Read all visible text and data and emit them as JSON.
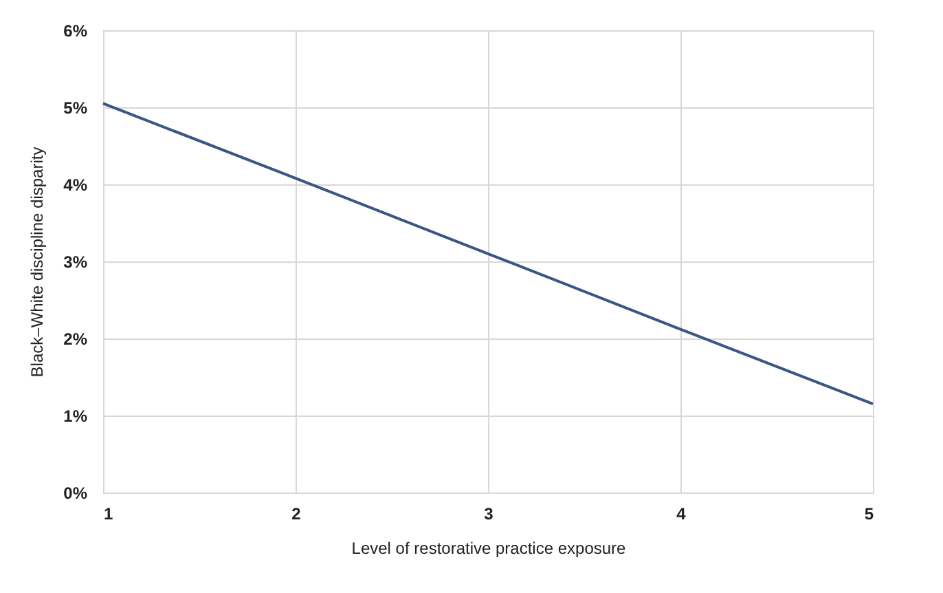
{
  "chart_data": {
    "type": "line",
    "xlabel": "Level of restorative practice exposure",
    "ylabel": "Black–White discipline disparity",
    "x": [
      1,
      2,
      3,
      4,
      5
    ],
    "series": [
      {
        "color": "#3b5585",
        "values": [
          5.05,
          4.08,
          3.1,
          2.12,
          1.15
        ]
      }
    ],
    "xlim": [
      1,
      5
    ],
    "xticks": [
      1,
      2,
      3,
      4,
      5
    ],
    "ylim": [
      0,
      6
    ],
    "yticks": [
      {
        "value": 0,
        "label": "0%"
      },
      {
        "value": 1,
        "label": "1%"
      },
      {
        "value": 2,
        "label": "2%"
      },
      {
        "value": 3,
        "label": "3%"
      },
      {
        "value": 4,
        "label": "4%"
      },
      {
        "value": 5,
        "label": "5%"
      },
      {
        "value": 6,
        "label": "6%"
      }
    ],
    "grid": true,
    "marker": "none",
    "line_style": "solid"
  }
}
